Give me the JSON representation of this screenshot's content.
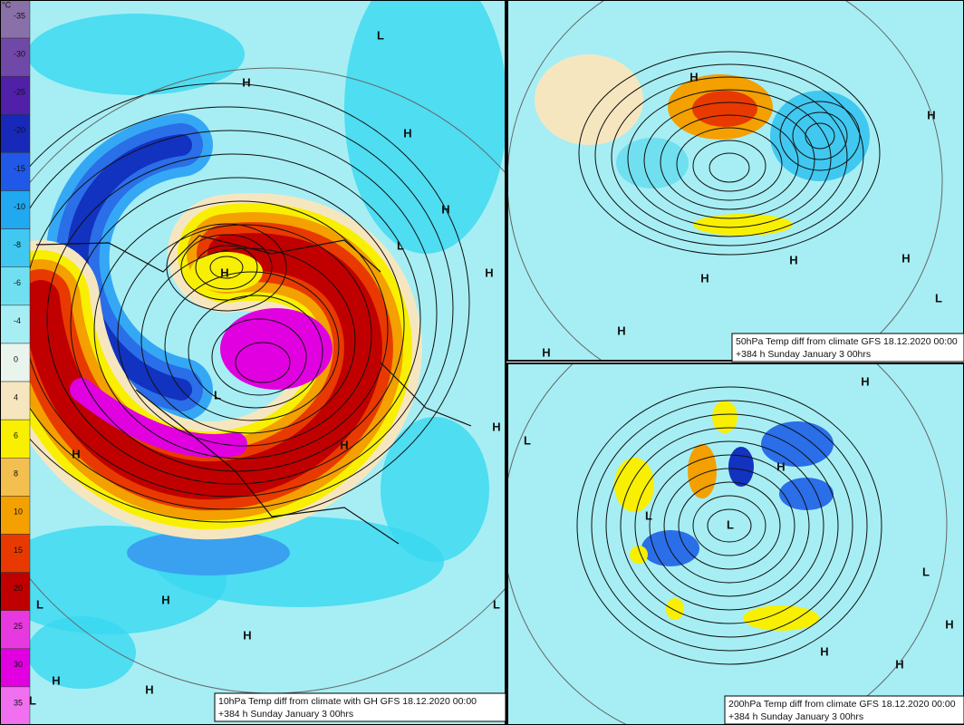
{
  "legend": {
    "unit": "°C",
    "ticks": [
      -35,
      -30,
      -25,
      -20,
      -15,
      -10,
      -8,
      -6,
      -4,
      0,
      4,
      6,
      8,
      10,
      15,
      20,
      25,
      30,
      35
    ]
  },
  "panels": [
    {
      "caption": [
        "10hPa Temp diff from climate with GH GFS 18.12.2020 00:00",
        "+384 h Sunday January 3 00hrs"
      ],
      "markers": [
        "L",
        "H",
        "H",
        "H",
        "L",
        "H",
        "H",
        "L",
        "H",
        "H",
        "H",
        "H",
        "L",
        "H",
        "L",
        "H",
        "H",
        "L"
      ]
    },
    {
      "caption": [
        "50hPa Temp diff from climate GFS 18.12.2020 00:00",
        "+384 h Sunday January 3 00hrs"
      ],
      "markers": [
        "H",
        "H",
        "H",
        "H",
        "H",
        "L",
        "H",
        "H"
      ]
    },
    {
      "caption": [
        "200hPa Temp diff from climate GFS 18.12.2020 00:00",
        "+384 h Sunday January 3 00hrs"
      ],
      "markers": [
        "H",
        "L",
        "H",
        "L",
        "L",
        "L",
        "H",
        "H",
        "H"
      ]
    }
  ]
}
